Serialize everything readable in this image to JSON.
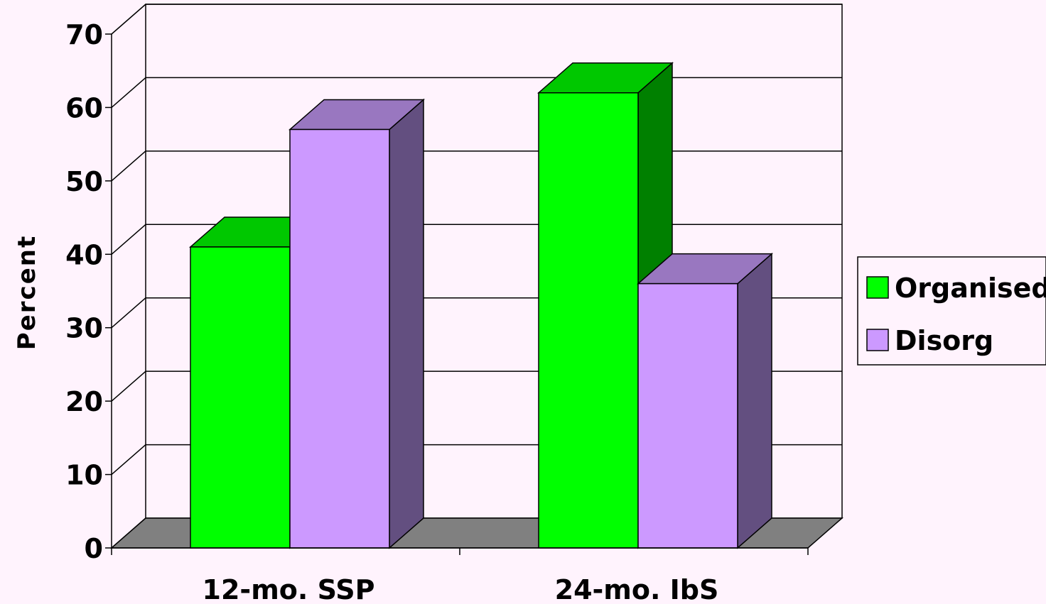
{
  "chart_data": {
    "type": "bar",
    "style": "3d-clustered-column",
    "categories": [
      "12-mo. SSP",
      "24-mo. IbS"
    ],
    "series": [
      {
        "name": "Organised",
        "values": [
          41,
          62
        ],
        "color": "#00FF00",
        "top_color": "#00C800",
        "side_color": "#008000"
      },
      {
        "name": "Disorg",
        "values": [
          57,
          36
        ],
        "color": "#CC99FF",
        "top_color": "#9977C0",
        "side_color": "#634F80"
      }
    ],
    "title": "",
    "xlabel": "",
    "ylabel": "Percent",
    "ylim": [
      0,
      70
    ],
    "yticks": [
      "0",
      "10",
      "20",
      "30",
      "40",
      "50",
      "60",
      "70"
    ],
    "grid": true,
    "legend_position": "right",
    "colors": {
      "background": "#FFF3FD",
      "floor": "#808080",
      "plot_wall": "#FFF3FD"
    }
  }
}
